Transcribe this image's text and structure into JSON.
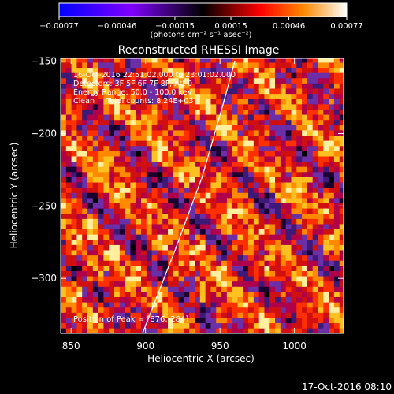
{
  "chart_data": {
    "type": "heatmap",
    "title": "Reconstructed RHESSI Image",
    "xlabel": "Heliocentric X (arcsec)",
    "ylabel": "Heliocentric Y (arcsec)",
    "xlim": [
      843,
      1033
    ],
    "ylim": [
      -338,
      -148
    ],
    "x_ticks": [
      850,
      900,
      950,
      1000
    ],
    "y_ticks": [
      -300,
      -250,
      -200,
      -150
    ],
    "x_tick_labels": [
      "850",
      "900",
      "950",
      "1000"
    ],
    "y_tick_labels": [
      "−300",
      "−250",
      "−200",
      "−150"
    ],
    "grid": false,
    "colorbar": {
      "placement": "top",
      "range": [
        -0.00077,
        0.00077
      ],
      "ticks": [
        -0.00077,
        -0.00046,
        -0.00015,
        0.00015,
        0.00046,
        0.00077
      ],
      "tick_labels": [
        "−0.00077",
        "−0.00046",
        "−0.00015",
        "0.00015",
        "0.00046",
        "0.00077"
      ],
      "units_label": "(photons cm⁻² s⁻¹ asec⁻²)",
      "colors": [
        "#0000ff",
        "#8000ff",
        "#000000",
        "#ff0000",
        "#ff8800",
        "#ffffff"
      ]
    },
    "annotations": [
      "16-Oct-2016 22:51:02.000 to 23:01:02.000",
      "Detectors: 3F 5F 6F 7F 8F, Att 0",
      "Energy Range: 50.0 - 100.0 keV",
      "Clean     Total counts: 8.24E+03"
    ],
    "peak_label": "Position of Peak = [876,-284]",
    "peak": [
      876,
      -284
    ],
    "limb_curve": [
      [
        898,
        -338
      ],
      [
        920,
        -280
      ],
      [
        938,
        -230
      ],
      [
        952,
        -180
      ],
      [
        960,
        -150
      ]
    ],
    "footer_date": "17-Oct-2016 08:10"
  }
}
